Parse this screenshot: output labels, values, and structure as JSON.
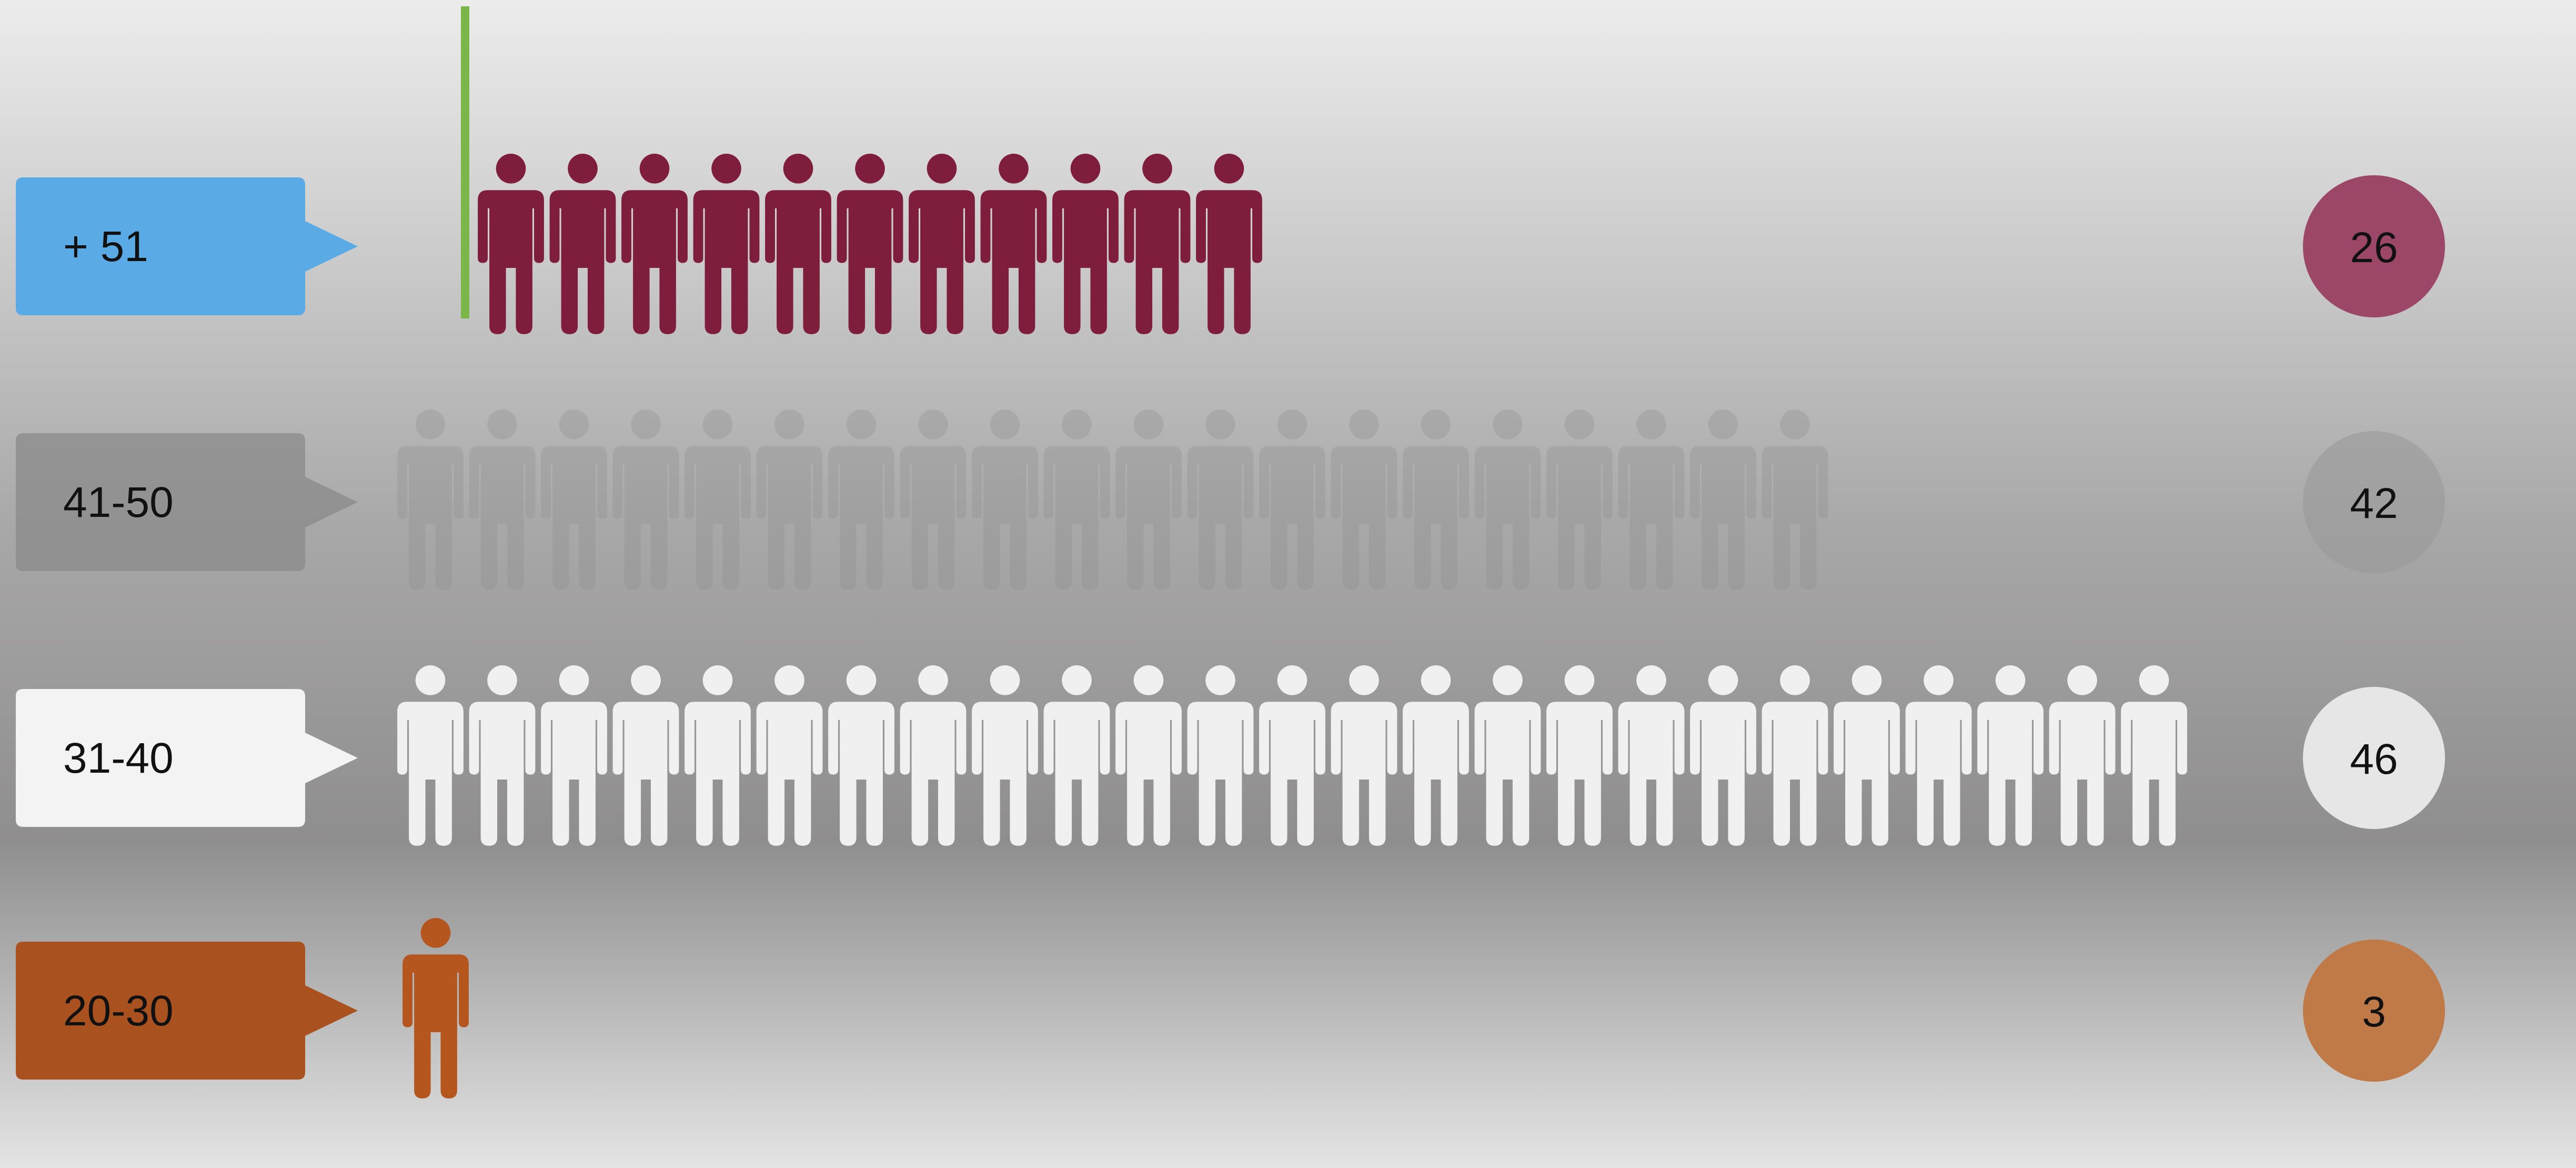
{
  "chart_data": {
    "type": "pictograph",
    "title": "",
    "categories": [
      "+ 51",
      "41-50",
      "31-40",
      "20-30"
    ],
    "values": [
      26,
      42,
      46,
      3
    ],
    "icon_counts": [
      11,
      20,
      25,
      1
    ],
    "colors": {
      "+ 51": "#7f1d3d",
      "41-50": "#8f8f8f",
      "31-40": "#f0f0f0",
      "20-30": "#b5561f"
    },
    "label_box_colors": {
      "+ 51": "#5aaae6",
      "41-50": "#8a8a8a",
      "31-40": "#f3f3f3",
      "20-30": "#a9521f"
    },
    "value_circle_colors": {
      "+ 51": "#9c4767",
      "41-50": "#9a9a9a",
      "31-40": "#e6e6e6",
      "20-30": "#c07a48"
    },
    "icon": "person-icon",
    "marker": "vertical-line",
    "marker_color": "#7ab648"
  }
}
